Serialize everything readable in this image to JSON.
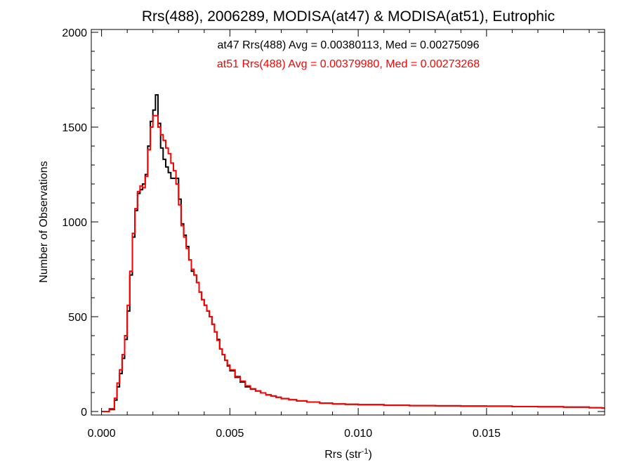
{
  "chart_data": {
    "type": "line",
    "title": "Rrs(488), 2006289, MODISA(at47) & MODISA(at51), Eutrophic",
    "xlabel": "Rrs (str",
    "xlabel_sup": "-1",
    "xlabel_close": ")",
    "ylabel": "Number of Observations",
    "xlim": [
      -0.0004,
      0.0196
    ],
    "ylim": [
      0,
      2000
    ],
    "x_ticks": [
      0.0,
      0.005,
      0.01,
      0.015
    ],
    "x_tick_labels": [
      "0.000",
      "0.005",
      "0.010",
      "0.015"
    ],
    "y_ticks": [
      0,
      500,
      1000,
      1500,
      2000
    ],
    "y_tick_labels": [
      "0",
      "500",
      "1000",
      "1500",
      "2000"
    ],
    "grid": false,
    "annotations": [
      {
        "text": "at47 Rrs(488) Avg = 0.00380113, Med = 0.00275096",
        "color": "#000000"
      },
      {
        "text": "at51 Rrs(488) Avg = 0.00379980, Med = 0.00273268",
        "color": "#ff0000"
      }
    ],
    "series": [
      {
        "color": "#000000",
        "x": [
          0.0,
          0.0003,
          0.0005,
          0.0006,
          0.0007,
          0.0008,
          0.0009,
          0.001,
          0.0011,
          0.0012,
          0.0013,
          0.0014,
          0.0015,
          0.0016,
          0.0017,
          0.0018,
          0.0019,
          0.002,
          0.0021,
          0.0022,
          0.0023,
          0.0024,
          0.0025,
          0.0026,
          0.0027,
          0.0028,
          0.0029,
          0.003,
          0.0031,
          0.0032,
          0.0033,
          0.0034,
          0.0035,
          0.0036,
          0.0037,
          0.0038,
          0.0039,
          0.004,
          0.0041,
          0.0042,
          0.0043,
          0.0044,
          0.0045,
          0.0046,
          0.0047,
          0.0048,
          0.0049,
          0.005,
          0.0052,
          0.0054,
          0.0056,
          0.0058,
          0.006,
          0.0062,
          0.0064,
          0.0066,
          0.0068,
          0.007,
          0.0073,
          0.0076,
          0.008,
          0.0085,
          0.009,
          0.0095,
          0.01,
          0.011,
          0.012,
          0.013,
          0.014,
          0.015,
          0.016,
          0.017,
          0.018,
          0.019,
          0.0195
        ],
        "values": [
          0,
          10,
          60,
          130,
          200,
          280,
          380,
          530,
          720,
          920,
          1060,
          1150,
          1170,
          1200,
          1250,
          1400,
          1530,
          1590,
          1670,
          1520,
          1390,
          1330,
          1290,
          1260,
          1230,
          1230,
          1230,
          1120,
          990,
          930,
          870,
          800,
          740,
          720,
          680,
          630,
          590,
          560,
          530,
          500,
          460,
          420,
          380,
          330,
          300,
          270,
          240,
          215,
          180,
          155,
          130,
          118,
          108,
          98,
          88,
          82,
          75,
          68,
          62,
          56,
          50,
          44,
          40,
          38,
          36,
          33,
          31,
          30,
          29,
          28,
          26,
          25,
          23,
          20,
          18
        ]
      },
      {
        "color": "#ff0000",
        "x": [
          0.0,
          0.0003,
          0.0005,
          0.0006,
          0.0007,
          0.0008,
          0.0009,
          0.001,
          0.0011,
          0.0012,
          0.0013,
          0.0014,
          0.0015,
          0.0016,
          0.0017,
          0.0018,
          0.0019,
          0.002,
          0.0021,
          0.0022,
          0.0023,
          0.0024,
          0.0025,
          0.0026,
          0.0027,
          0.0028,
          0.0029,
          0.003,
          0.0031,
          0.0032,
          0.0033,
          0.0034,
          0.0035,
          0.0036,
          0.0037,
          0.0038,
          0.0039,
          0.004,
          0.0041,
          0.0042,
          0.0043,
          0.0044,
          0.0045,
          0.0046,
          0.0047,
          0.0048,
          0.0049,
          0.005,
          0.0052,
          0.0054,
          0.0056,
          0.0058,
          0.006,
          0.0062,
          0.0064,
          0.0066,
          0.0068,
          0.007,
          0.0073,
          0.0076,
          0.008,
          0.0085,
          0.009,
          0.0095,
          0.01,
          0.011,
          0.012,
          0.013,
          0.014,
          0.015,
          0.016,
          0.017,
          0.018,
          0.019,
          0.0195
        ],
        "values": [
          0,
          15,
          70,
          150,
          220,
          300,
          400,
          560,
          740,
          940,
          1070,
          1160,
          1190,
          1180,
          1240,
          1380,
          1500,
          1560,
          1560,
          1500,
          1460,
          1430,
          1390,
          1360,
          1310,
          1270,
          1200,
          1090,
          980,
          920,
          860,
          800,
          750,
          720,
          680,
          630,
          590,
          560,
          530,
          500,
          460,
          420,
          375,
          330,
          300,
          270,
          245,
          220,
          185,
          160,
          135,
          120,
          108,
          98,
          88,
          82,
          75,
          68,
          62,
          56,
          50,
          44,
          40,
          38,
          36,
          33,
          31,
          30,
          29,
          28,
          26,
          25,
          23,
          20,
          18
        ]
      }
    ]
  }
}
